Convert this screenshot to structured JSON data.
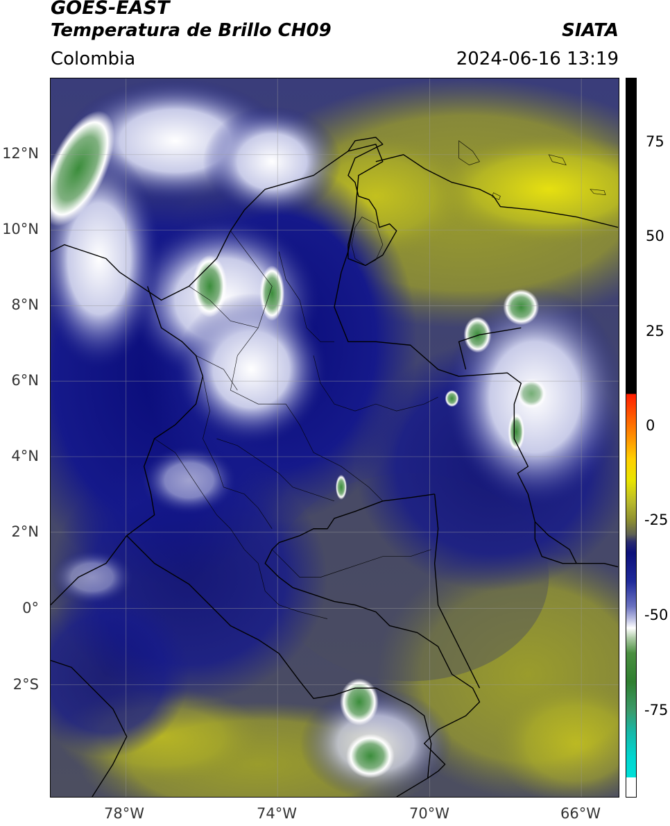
{
  "header": {
    "satellite": "GOES-EAST",
    "product": "Temperatura de Brillo CH09",
    "region": "Colombia",
    "org": "SIATA",
    "datetime": "2024-06-16 13:19"
  },
  "map": {
    "lat_labels": [
      "12°N",
      "10°N",
      "8°N",
      "6°N",
      "4°N",
      "2°N",
      "0°",
      "2°S"
    ],
    "lon_labels": [
      "78°W",
      "74°W",
      "70°W",
      "66°W"
    ],
    "extent": {
      "lon": [
        -80,
        -65
      ],
      "lat": [
        -5,
        14
      ]
    }
  },
  "colorbar": {
    "ticks": [
      "75",
      "50",
      "25",
      "0",
      "-25",
      "-50",
      "-75"
    ],
    "range": [
      -95,
      90
    ],
    "colors": {
      "very_cold": "#e8f8ff",
      "cyan": "#00d6d0",
      "green": "#3a8a3a",
      "white": "#ffffff",
      "blue": "#0c107a",
      "gray": "#4c4e60",
      "olive": "#8d8f30",
      "yellow": "#e8e400",
      "orange": "#ff8c00",
      "red": "#ff1c00",
      "black": "#000000"
    }
  }
}
